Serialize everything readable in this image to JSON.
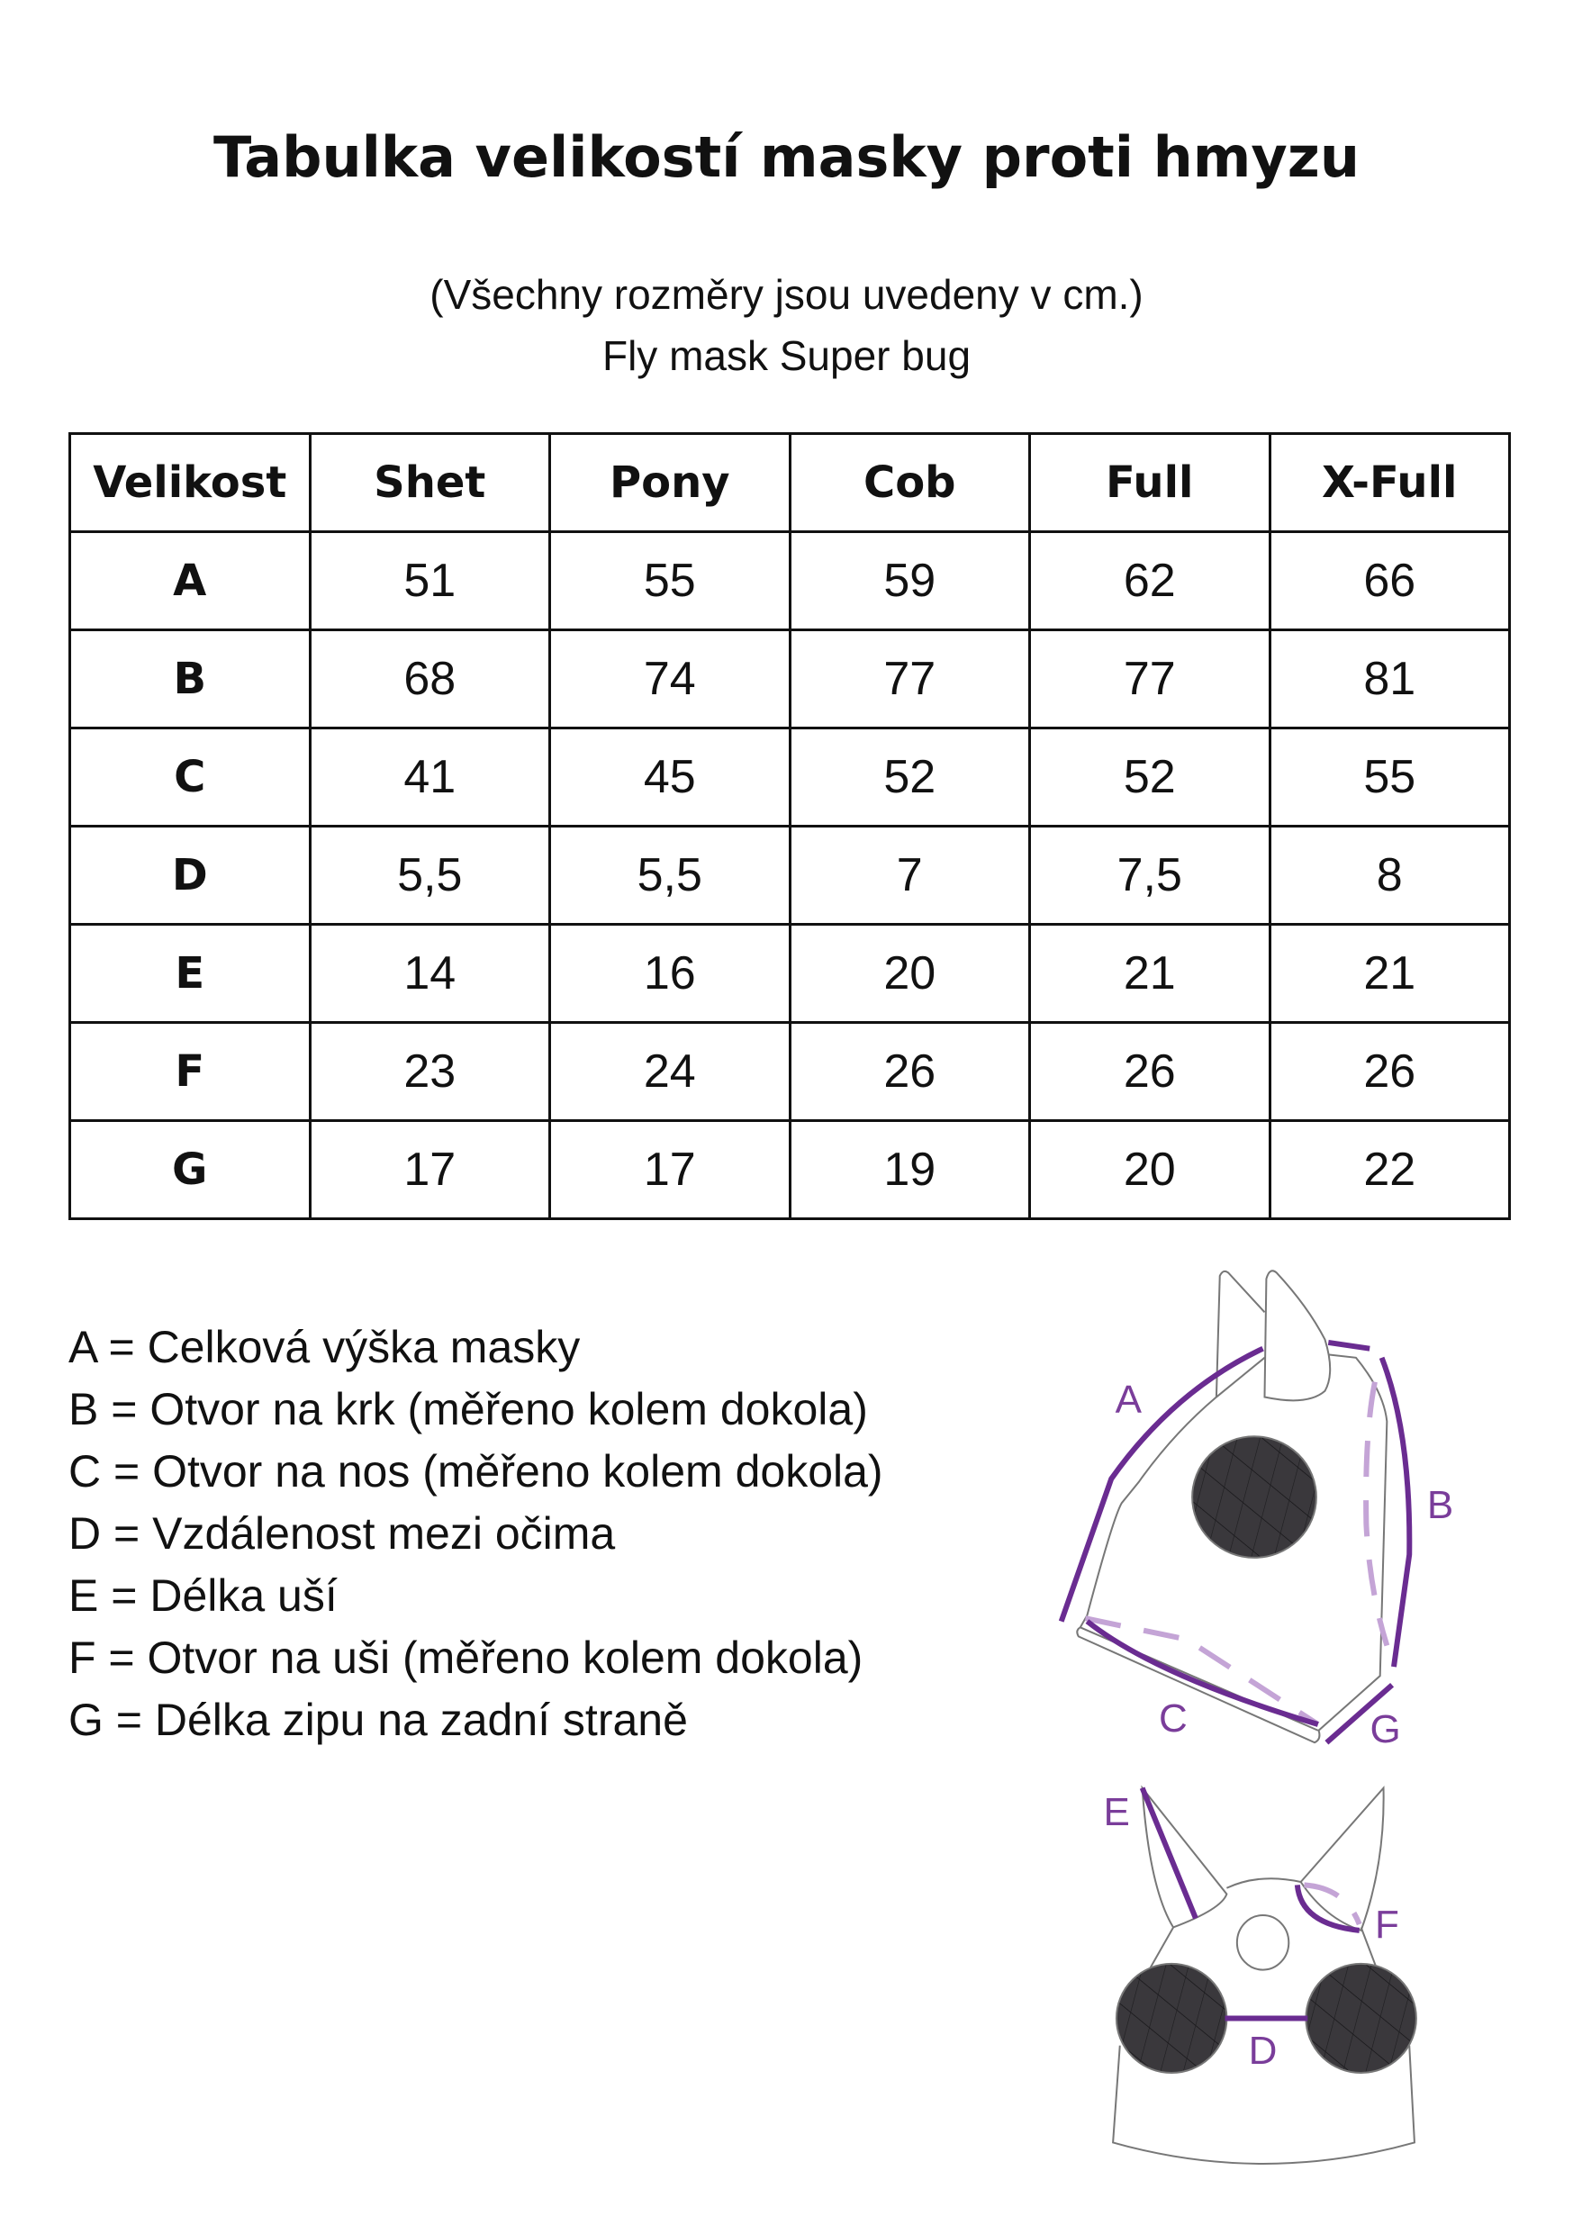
{
  "title": "Tabulka velikostí masky proti hmyzu",
  "subtitle": [
    "(Všechny rozměry jsou uvedeny v cm.)",
    "Fly mask Super bug"
  ],
  "table": {
    "headers": [
      "Velikost",
      "Shet",
      "Pony",
      "Cob",
      "Full",
      "X-Full"
    ],
    "rows": [
      [
        "A",
        "51",
        "55",
        "59",
        "62",
        "66"
      ],
      [
        "B",
        "68",
        "74",
        "77",
        "77",
        "81"
      ],
      [
        "C",
        "41",
        "45",
        "52",
        "52",
        "55"
      ],
      [
        "D",
        "5,5",
        "5,5",
        "7",
        "7,5",
        "8"
      ],
      [
        "E",
        "14",
        "16",
        "20",
        "21",
        "21"
      ],
      [
        "F",
        "23",
        "24",
        "26",
        "26",
        "26"
      ],
      [
        "G",
        "17",
        "17",
        "19",
        "20",
        "22"
      ]
    ]
  },
  "legend": [
    "A = Celková výška masky",
    "B = Otvor na krk (měřeno kolem dokola)",
    "C = Otvor na nos (měřeno kolem dokola)",
    "D = Vzdálenost mezi očima",
    "E = Délka uší",
    "F = Otvor na uši (měřeno kolem dokola)",
    "G = Délka zipu na zadní straně"
  ],
  "diagram": {
    "labels": {
      "A": "A",
      "B": "B",
      "C": "C",
      "D": "D",
      "E": "E",
      "F": "F",
      "G": "G"
    },
    "colors": {
      "measure": "#6a2c91",
      "measure_dashed": "#c4a4d6",
      "mesh": "#3a383c",
      "outline": "#777777"
    }
  }
}
